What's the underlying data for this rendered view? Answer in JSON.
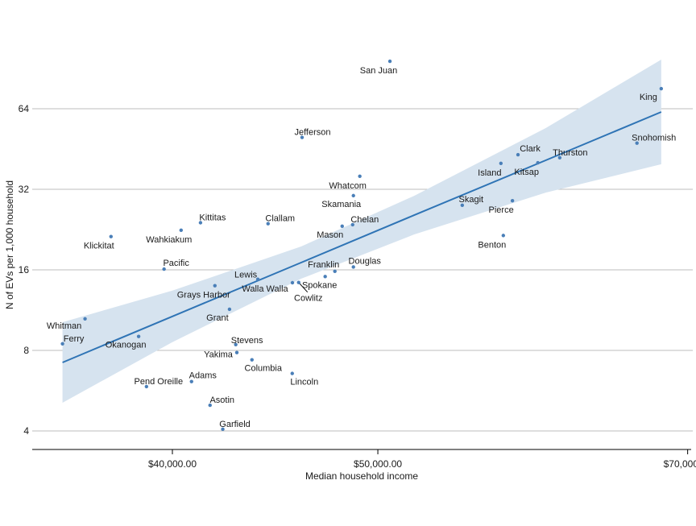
{
  "chart_data": {
    "type": "scatter",
    "title": "",
    "xlabel": "Median household income",
    "ylabel": "N of EVs per 1,000 household",
    "x_scale": "log",
    "y_scale": "log2",
    "xlim": [
      34300,
      70300
    ],
    "ylim": [
      3.7,
      110
    ],
    "x_ticks": [
      {
        "value": 40000,
        "label": "$40,000.00"
      },
      {
        "value": 50000,
        "label": "$50,000.00"
      },
      {
        "value": 70000,
        "label": "$70,000.00"
      }
    ],
    "y_ticks": [
      {
        "value": 4,
        "label": "4"
      },
      {
        "value": 8,
        "label": "8"
      },
      {
        "value": 16,
        "label": "16"
      },
      {
        "value": 32,
        "label": "32"
      },
      {
        "value": 64,
        "label": "64"
      }
    ],
    "grid": "horizontal",
    "colors": {
      "point": "#4a7fb8",
      "fit_line": "#2f74b5",
      "ci_band": "#d6e3ef",
      "grid": "#bdbdbd",
      "axis": "#000000"
    },
    "points": [
      {
        "name": "Ferry",
        "x": 35500,
        "y": 8.47
      },
      {
        "name": "Whitman",
        "x": 36380,
        "y": 10.5
      },
      {
        "name": "Klickitat",
        "x": 37420,
        "y": 21.3
      },
      {
        "name": "Okanogan",
        "x": 38560,
        "y": 9.02
      },
      {
        "name": "Pend Oreille",
        "x": 38890,
        "y": 5.86
      },
      {
        "name": "Pacific",
        "x": 39640,
        "y": 16.1
      },
      {
        "name": "Wahkiakum",
        "x": 40380,
        "y": 22.5
      },
      {
        "name": "Adams",
        "x": 40840,
        "y": 6.12
      },
      {
        "name": "Kittitas",
        "x": 41240,
        "y": 24.0
      },
      {
        "name": "Asotin",
        "x": 41670,
        "y": 4.99
      },
      {
        "name": "Grays Harbor",
        "x": 41890,
        "y": 13.96
      },
      {
        "name": "Garfield",
        "x": 42250,
        "y": 4.06
      },
      {
        "name": "Grant",
        "x": 42560,
        "y": 11.4
      },
      {
        "name": "Stevens",
        "x": 42850,
        "y": 8.41
      },
      {
        "name": "Yakima",
        "x": 42900,
        "y": 7.85
      },
      {
        "name": "Columbia",
        "x": 43610,
        "y": 7.38
      },
      {
        "name": "Lewis",
        "x": 43890,
        "y": 14.75
      },
      {
        "name": "Clallam",
        "x": 44380,
        "y": 23.8
      },
      {
        "name": "Lincoln",
        "x": 45560,
        "y": 6.56
      },
      {
        "name": "Walla Walla",
        "x": 45570,
        "y": 14.32
      },
      {
        "name": "Cowlitz",
        "x": 45880,
        "y": 14.35
      },
      {
        "name": "Jefferson",
        "x": 46050,
        "y": 50.0
      },
      {
        "name": "Spokane",
        "x": 47220,
        "y": 15.1
      },
      {
        "name": "Franklin",
        "x": 47720,
        "y": 15.8
      },
      {
        "name": "Mason",
        "x": 48100,
        "y": 23.3
      },
      {
        "name": "Chelan",
        "x": 48650,
        "y": 23.6
      },
      {
        "name": "Skamania",
        "x": 48690,
        "y": 30.3
      },
      {
        "name": "Douglas",
        "x": 48690,
        "y": 16.4
      },
      {
        "name": "Whatcom",
        "x": 49030,
        "y": 35.8
      },
      {
        "name": "San Juan",
        "x": 50660,
        "y": 96.3
      },
      {
        "name": "Skagit",
        "x": 54800,
        "y": 27.9
      },
      {
        "name": "Island",
        "x": 57150,
        "y": 40.0
      },
      {
        "name": "Benton",
        "x": 57300,
        "y": 21.5
      },
      {
        "name": "Pierce",
        "x": 57870,
        "y": 29.0
      },
      {
        "name": "Clark",
        "x": 58220,
        "y": 43.1
      },
      {
        "name": "Kitsap",
        "x": 59490,
        "y": 40.2
      },
      {
        "name": "Thurston",
        "x": 60920,
        "y": 42.0
      },
      {
        "name": "Snohomish",
        "x": 66250,
        "y": 47.6
      },
      {
        "name": "King",
        "x": 68020,
        "y": 76.1
      }
    ],
    "fit": {
      "x": [
        35500,
        40000,
        46000,
        52000,
        60000,
        68020
      ],
      "y": [
        7.21,
        10.72,
        17.03,
        25.6,
        41.07,
        62.25
      ],
      "ci_upper": [
        10.2,
        13.38,
        19.56,
        30.23,
        54.2,
        97.7
      ],
      "ci_lower": [
        5.1,
        8.59,
        14.82,
        21.68,
        31.1,
        39.7
      ]
    }
  }
}
